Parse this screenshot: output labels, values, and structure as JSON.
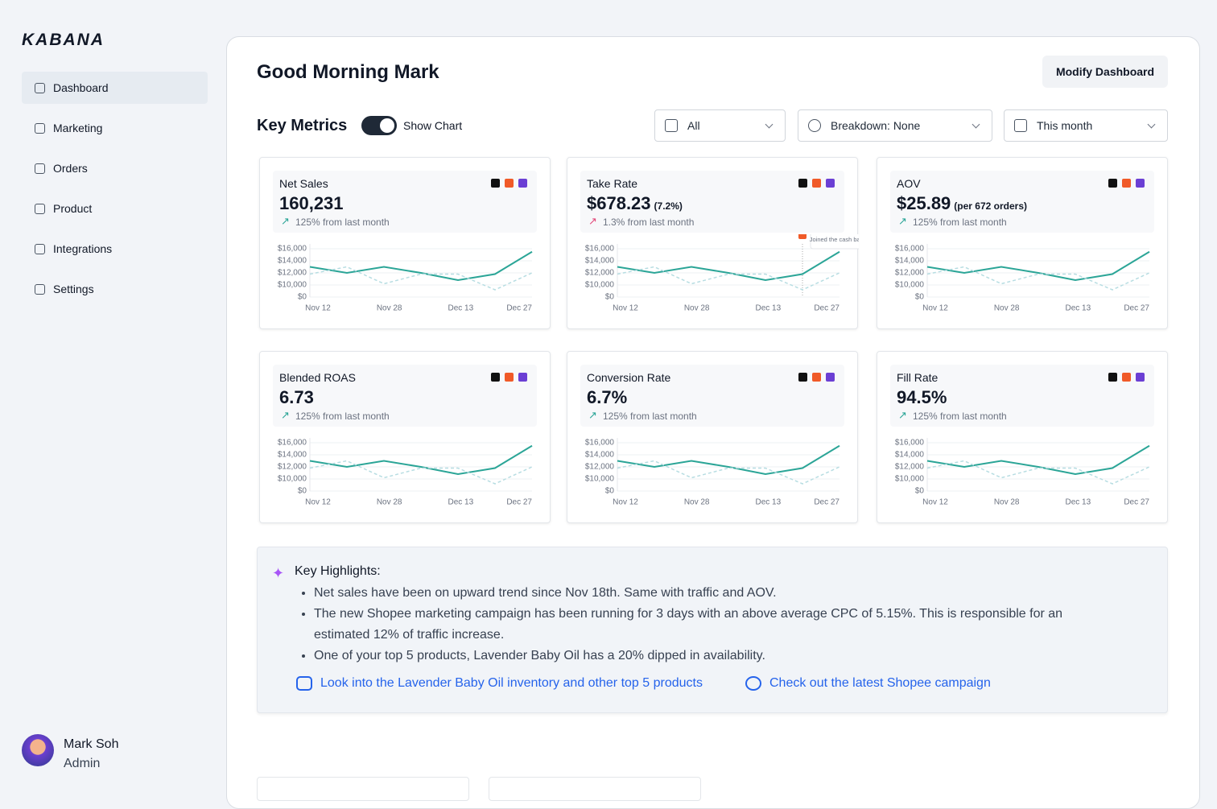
{
  "sidebar": {
    "brand": "KABANA",
    "nav": [
      "Dashboard",
      "Marketing",
      "Orders",
      "Product",
      "Integrations",
      "Settings"
    ],
    "user": {
      "name": "Mark Soh",
      "role": "Admin"
    }
  },
  "header": {
    "greeting": "Good Morning Mark",
    "button": "Modify Dashboard"
  },
  "metrics": {
    "title": "Key Metrics",
    "toggle_label": "Show Chart",
    "filters": [
      "All",
      "Breakdown: None",
      "This month"
    ]
  },
  "cards": [
    {
      "title": "Net Sales",
      "value": "160,231",
      "change": "125% from last month",
      "chart": {
        "type": "line",
        "yticks": [
          {
            "value": 0,
            "label": "$0"
          },
          {
            "value": 10000,
            "label": "$10,000"
          },
          {
            "value": 12000,
            "label": "$12,000"
          },
          {
            "value": 14000,
            "label": "$14,000"
          },
          {
            "value": 16000,
            "label": "$16,000"
          }
        ],
        "xticks": [
          "Nov 12",
          "Nov 28",
          "Dec 13",
          "Dec 27"
        ],
        "series": [
          {
            "color": "#2ba597",
            "values": [
              13000,
              12000,
              13000,
              12000,
              10800,
              11800,
              15500
            ]
          },
          {
            "color": "#b7dde2",
            "values": [
              11800,
              13000,
              10200,
              11800,
              11800,
              6000,
              12000
            ]
          }
        ]
      }
    },
    {
      "title": "Take Rate",
      "value": "$678.23",
      "value_note": "(7.2%)",
      "change": "1.3% from last month",
      "chart": {
        "type": "line",
        "annotation": "Joined the cash back program",
        "yticks": [
          {
            "value": 0,
            "label": "$0"
          },
          {
            "value": 10000,
            "label": "$10,000"
          },
          {
            "value": 12000,
            "label": "$12,000"
          },
          {
            "value": 14000,
            "label": "$14,000"
          },
          {
            "value": 16000,
            "label": "$16,000"
          }
        ],
        "xticks": [
          "Nov 12",
          "Nov 28",
          "Dec 13",
          "Dec 27"
        ],
        "series": [
          {
            "color": "#2ba597",
            "values": [
              13000,
              12000,
              13000,
              12000,
              10800,
              11800,
              15500
            ]
          },
          {
            "color": "#b7dde2",
            "values": [
              11800,
              13000,
              10200,
              11800,
              11800,
              6000,
              12000
            ]
          }
        ]
      }
    },
    {
      "title": "AOV",
      "value": "$25.89",
      "value_note": "(per 672 orders)",
      "change": "125% from last month",
      "chart": {
        "type": "line",
        "yticks": [
          {
            "value": 0,
            "label": "$0"
          },
          {
            "value": 10000,
            "label": "$10,000"
          },
          {
            "value": 12000,
            "label": "$12,000"
          },
          {
            "value": 14000,
            "label": "$14,000"
          },
          {
            "value": 16000,
            "label": "$16,000"
          }
        ],
        "xticks": [
          "Nov 12",
          "Nov 28",
          "Dec 13",
          "Dec 27"
        ],
        "series": [
          {
            "color": "#2ba597",
            "values": [
              13000,
              12000,
              13000,
              12000,
              10800,
              11800,
              15500
            ]
          },
          {
            "color": "#b7dde2",
            "values": [
              11800,
              13000,
              10200,
              11800,
              11800,
              6000,
              12000
            ]
          }
        ]
      }
    },
    {
      "title": "Blended ROAS",
      "value": "6.73",
      "change": "125% from last month",
      "chart": {
        "type": "line",
        "yticks": [
          {
            "value": 0,
            "label": "$0"
          },
          {
            "value": 10000,
            "label": "$10,000"
          },
          {
            "value": 12000,
            "label": "$12,000"
          },
          {
            "value": 14000,
            "label": "$14,000"
          },
          {
            "value": 16000,
            "label": "$16,000"
          }
        ],
        "xticks": [
          "Nov 12",
          "Nov 28",
          "Dec 13",
          "Dec 27"
        ],
        "series": [
          {
            "color": "#2ba597",
            "values": [
              13000,
              12000,
              13000,
              12000,
              10800,
              11800,
              15500
            ]
          },
          {
            "color": "#b7dde2",
            "values": [
              11800,
              13000,
              10200,
              11800,
              11800,
              6000,
              12000
            ]
          }
        ]
      }
    },
    {
      "title": "Conversion Rate",
      "value": "6.7%",
      "change": "125% from last month",
      "chart": {
        "type": "line",
        "yticks": [
          {
            "value": 0,
            "label": "$0"
          },
          {
            "value": 10000,
            "label": "$10,000"
          },
          {
            "value": 12000,
            "label": "$12,000"
          },
          {
            "value": 14000,
            "label": "$14,000"
          },
          {
            "value": 16000,
            "label": "$16,000"
          }
        ],
        "xticks": [
          "Nov 12",
          "Nov 28",
          "Dec 13",
          "Dec 27"
        ],
        "series": [
          {
            "color": "#2ba597",
            "values": [
              13000,
              12000,
              13000,
              12000,
              10800,
              11800,
              15500
            ]
          },
          {
            "color": "#b7dde2",
            "values": [
              11800,
              13000,
              10200,
              11800,
              11800,
              6000,
              12000
            ]
          }
        ]
      }
    },
    {
      "title": "Fill Rate",
      "value": "94.5%",
      "change": "125% from last month",
      "chart": {
        "type": "line",
        "yticks": [
          {
            "value": 0,
            "label": "$0"
          },
          {
            "value": 10000,
            "label": "$10,000"
          },
          {
            "value": 12000,
            "label": "$12,000"
          },
          {
            "value": 14000,
            "label": "$14,000"
          },
          {
            "value": 16000,
            "label": "$16,000"
          }
        ],
        "xticks": [
          "Nov 12",
          "Nov 28",
          "Dec 13",
          "Dec 27"
        ],
        "series": [
          {
            "color": "#2ba597",
            "values": [
              13000,
              12000,
              13000,
              12000,
              10800,
              11800,
              15500
            ]
          },
          {
            "color": "#b7dde2",
            "values": [
              11800,
              13000,
              10200,
              11800,
              11800,
              6000,
              12000
            ]
          }
        ]
      }
    }
  ],
  "highlights": {
    "title": "Key Highlights:",
    "items": [
      "Net sales have been on upward trend since Nov 18th. Same with traffic and AOV.",
      "The new Shopee marketing campaign has been running for 3 days with an above average CPC of 5.15%. This is responsible for an estimated 12% of traffic increase.",
      "One of your top 5 products, Lavender Baby Oil has a 20% dipped in availability."
    ],
    "links": [
      "Look into the Lavender Baby Oil inventory and other top 5 products",
      "Check out the latest Shopee campaign"
    ]
  }
}
